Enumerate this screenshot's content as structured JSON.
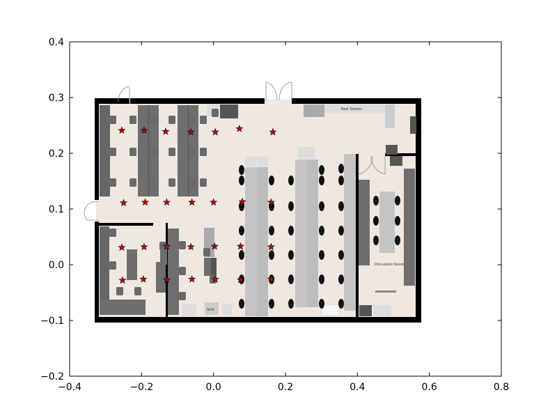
{
  "chart_data": {
    "type": "scatter",
    "title": "",
    "xlabel": "",
    "ylabel": "",
    "xlim": [
      -0.4,
      0.8
    ],
    "ylim": [
      -0.2,
      0.4
    ],
    "x_ticks": [
      -0.4,
      -0.2,
      0.0,
      0.2,
      0.4,
      0.6,
      0.8
    ],
    "x_tick_labels": [
      "−0.4",
      "−0.2",
      "0.0",
      "0.2",
      "0.4",
      "0.6",
      "0.8"
    ],
    "y_ticks": [
      -0.2,
      -0.1,
      0.0,
      0.1,
      0.2,
      0.3,
      0.4
    ],
    "y_tick_labels": [
      "−0.2",
      "−0.1",
      "0.0",
      "0.1",
      "0.2",
      "0.3",
      "0.4"
    ],
    "grid": false,
    "background_image": "office floor plan",
    "background_extent": {
      "x": [
        -0.33,
        0.57
      ],
      "y": [
        -0.1,
        0.3
      ]
    },
    "room_labels": [
      "Discussion Room",
      "Rest Station",
      "Sink"
    ],
    "marker": "star",
    "marker_color": "#cc0000",
    "series": [
      {
        "points": [
          [
            -0.255,
            0.241
          ],
          [
            -0.193,
            0.241
          ],
          [
            -0.133,
            0.239
          ],
          [
            -0.063,
            0.238
          ],
          [
            0.005,
            0.238
          ],
          [
            0.072,
            0.244
          ],
          [
            0.165,
            0.238
          ],
          [
            -0.25,
            0.111
          ],
          [
            -0.19,
            0.112
          ],
          [
            -0.13,
            0.112
          ],
          [
            -0.06,
            0.112
          ],
          [
            0.0,
            0.112
          ],
          [
            0.08,
            0.113
          ],
          [
            0.16,
            0.112
          ],
          [
            -0.255,
            0.031
          ],
          [
            -0.193,
            0.032
          ],
          [
            -0.13,
            0.033
          ],
          [
            -0.063,
            0.032
          ],
          [
            0.003,
            0.033
          ],
          [
            0.075,
            0.033
          ],
          [
            0.16,
            0.032
          ],
          [
            -0.253,
            -0.028
          ],
          [
            -0.195,
            -0.026
          ],
          [
            -0.13,
            -0.027
          ],
          [
            -0.06,
            -0.026
          ],
          [
            0.005,
            -0.026
          ],
          [
            0.075,
            -0.027
          ],
          [
            0.16,
            -0.026
          ]
        ]
      }
    ]
  }
}
